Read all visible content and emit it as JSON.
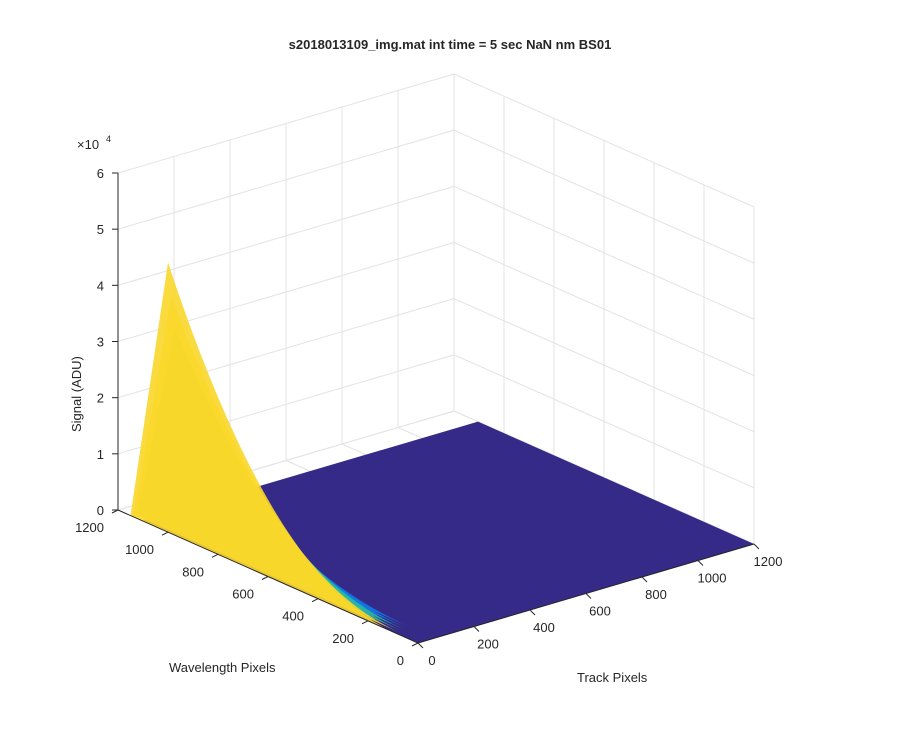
{
  "chart_data": {
    "type": "surface",
    "title": "s2018013109_img.mat int time = 5 sec  NaN nm BS01",
    "xlabel": "Track Pixels",
    "ylabel": "Wavelength Pixels",
    "zlabel": "Signal (ADU)",
    "z_exponent_label": "×10",
    "z_exponent_power": "4",
    "xlim": [
      0,
      1200
    ],
    "ylim": [
      0,
      1200
    ],
    "zlim": [
      0,
      60000
    ],
    "x_ticks": [
      "0",
      "200",
      "400",
      "600",
      "800",
      "1000",
      "1200"
    ],
    "y_ticks": [
      "0",
      "200",
      "400",
      "600",
      "800",
      "1000",
      "1200"
    ],
    "z_ticks": [
      "0",
      "1",
      "2",
      "3",
      "4",
      "5",
      "6"
    ],
    "grid": true,
    "colormap": "parula",
    "colors": {
      "low": "#352a87",
      "mid": "#0f7ae6",
      "teal": "#2ab8a5",
      "high": "#f9d72a"
    },
    "surface_summary": {
      "flat_region_value": 0,
      "signal_track_range": [
        0,
        120
      ],
      "signal_wavelength_range": [
        80,
        1150
      ],
      "peak_signal": 48000,
      "peak_wavelength": 1000
    }
  }
}
